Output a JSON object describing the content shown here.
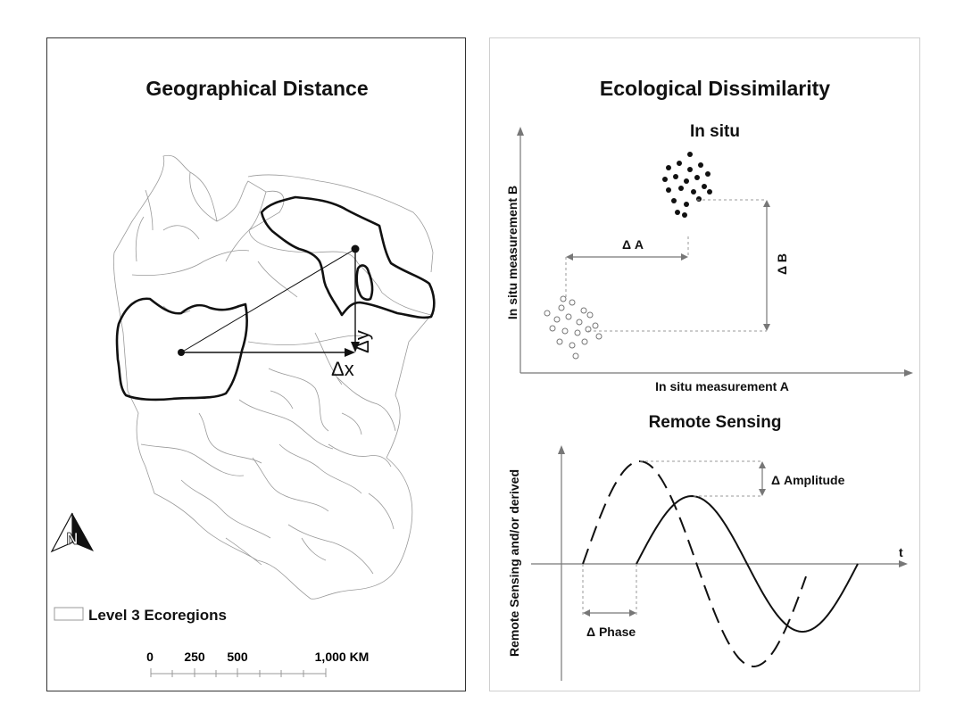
{
  "left": {
    "title": "Geographical Distance",
    "dx_label": "Δx",
    "dy_label": "Δy",
    "legend_label": "Level 3 Ecoregions",
    "scale_ticks": [
      "0",
      "250",
      "500",
      "1,000 KM"
    ],
    "north_letter": "N"
  },
  "right": {
    "title": "Ecological Dissimilarity",
    "insitu": {
      "title": "In situ",
      "x_label": "In situ measurement A",
      "y_label": "In situ measurement B",
      "delta_a": "Δ A",
      "delta_b": "Δ B"
    },
    "remote": {
      "title": "Remote Sensing",
      "y_label": "Remote Sensing and/or derived",
      "t_label": "t",
      "amplitude_label": "Δ Amplitude",
      "phase_label": "Δ Phase"
    }
  },
  "colors": {
    "ink": "#111111",
    "map_line": "#9a9a9a",
    "guide": "#888888"
  }
}
